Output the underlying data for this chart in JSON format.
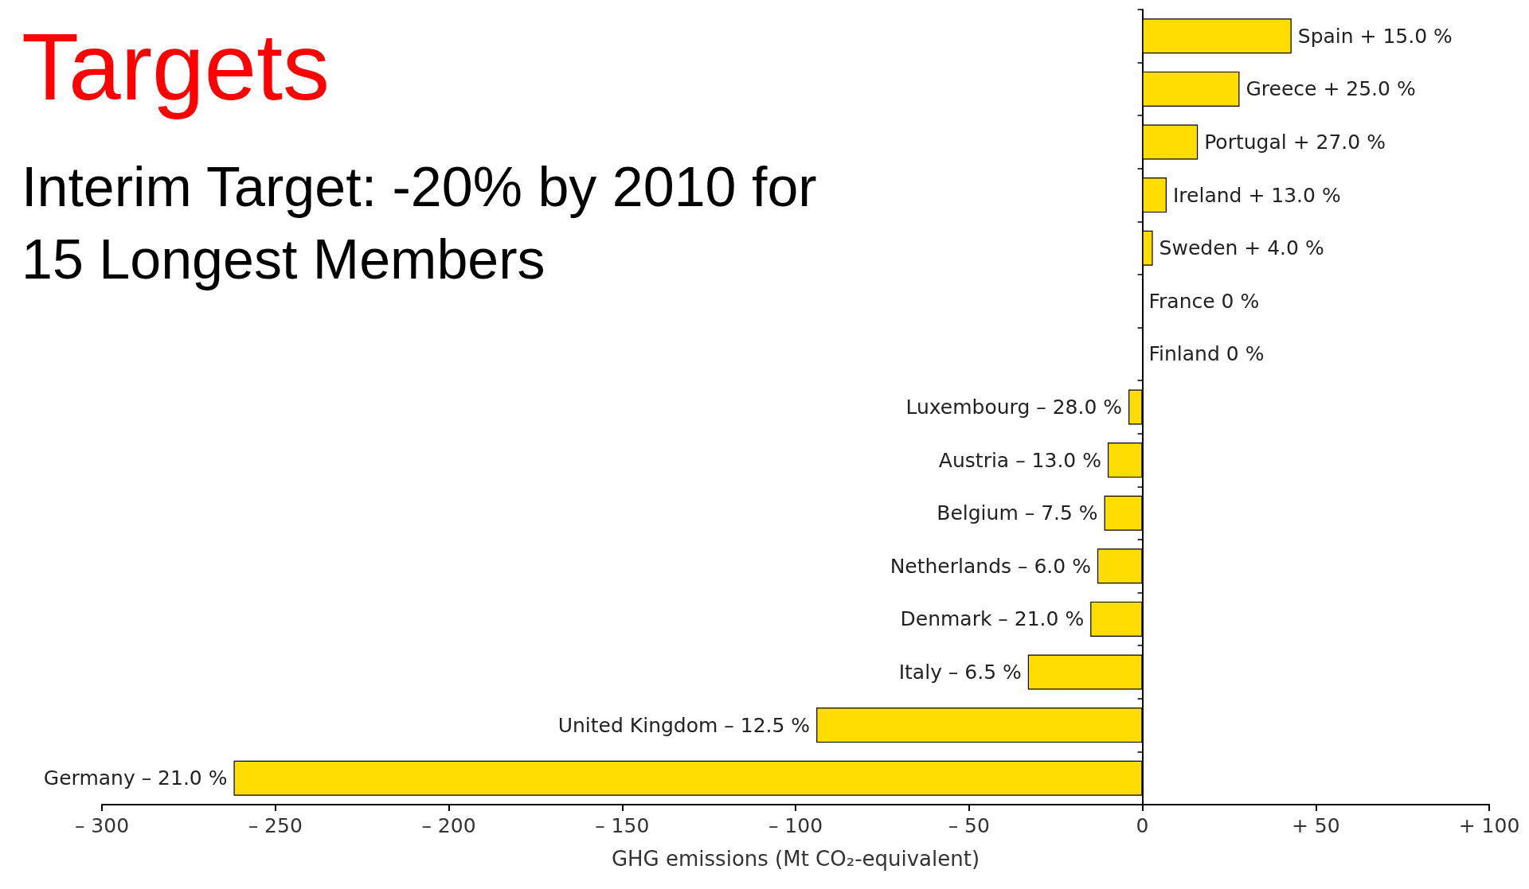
{
  "chart_data": {
    "type": "bar",
    "orientation": "horizontal",
    "title": "Targets",
    "subtitle": "Interim Target: -20% by 2010 for\n15 Longest Members",
    "xlabel": "GHG emissions (Mt CO₂-equivalent)",
    "categories": [
      "Spain + 15.0 %",
      "Greece + 25.0 %",
      "Portugal + 27.0 %",
      "Ireland + 13.0 %",
      "Sweden + 4.0 %",
      "France 0 %",
      "Finland 0 %",
      "Luxembourg – 28.0 %",
      "Austria – 13.0 %",
      "Belgium – 7.5 %",
      "Netherlands – 6.0 %",
      "Denmark – 21.0 %",
      "Italy – 6.5 %",
      "United Kingdom – 12.5 %",
      "Germany – 21.0 %"
    ],
    "values": [
      43,
      28,
      16,
      7,
      3,
      0,
      0,
      -4,
      -10,
      -11,
      -13,
      -15,
      -33,
      -94,
      -262
    ],
    "color": "#ffdd00",
    "xlim": [
      -300,
      100
    ],
    "xticks": [
      {
        "value": -300,
        "label": "– 300"
      },
      {
        "value": -250,
        "label": "– 250"
      },
      {
        "value": -200,
        "label": "– 200"
      },
      {
        "value": -150,
        "label": "– 150"
      },
      {
        "value": -100,
        "label": "– 100"
      },
      {
        "value": -50,
        "label": "– 50"
      },
      0,
      {
        "value": 50,
        "label": "+ 50"
      },
      {
        "value": 100,
        "label": "+ 100"
      }
    ],
    "grid": false
  }
}
